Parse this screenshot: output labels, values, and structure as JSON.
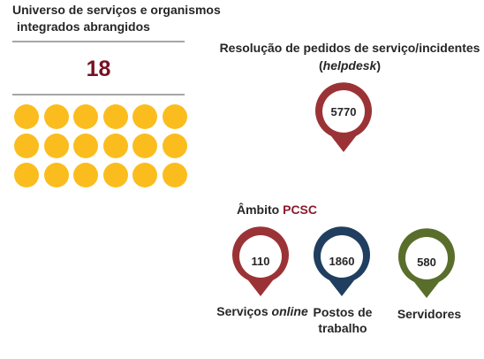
{
  "universe": {
    "title_line1": "Universo de serviços e organismos",
    "title_line2": "integrados abrangidos",
    "count": "18",
    "dot_color": "#fbbd1e"
  },
  "helpdesk": {
    "title_line1": "Resolução de pedidos de serviço/incidentes",
    "title_paren_open": "(",
    "title_italic": "helpdesk",
    "title_paren_close": ")",
    "value": "5770",
    "color": "#9b3336"
  },
  "pcsc": {
    "label_prefix": "Âmbito ",
    "label_accent": "PCSC",
    "accent_color": "#8b1a2c",
    "items": [
      {
        "value": "110",
        "caption_prefix": "Serviços ",
        "caption_italic": "online",
        "color": "#9b3336"
      },
      {
        "value": "1860",
        "caption_line1": "Postos de",
        "caption_line2": "trabalho",
        "color": "#203e5f"
      },
      {
        "value": "580",
        "caption": "Servidores",
        "color": "#5a6e2c"
      }
    ]
  },
  "icons": [
    "location-pin-icon"
  ]
}
